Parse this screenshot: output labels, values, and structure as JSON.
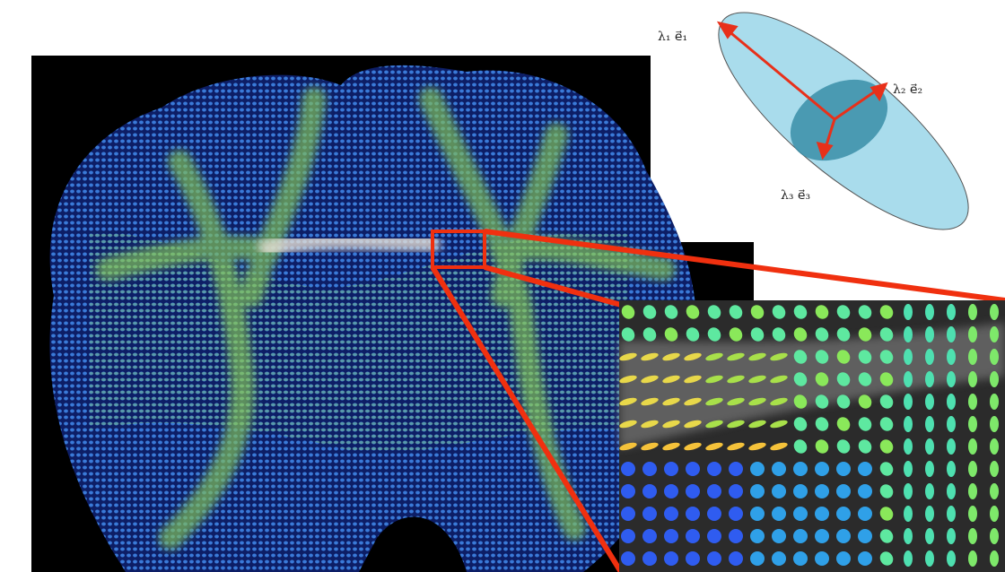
{
  "labels": {
    "eigen_1": "λ₁  e⃗₁",
    "eigen_2": "λ₂  e⃗₂",
    "eigen_3": "λ₃  e⃗₃"
  }
}
